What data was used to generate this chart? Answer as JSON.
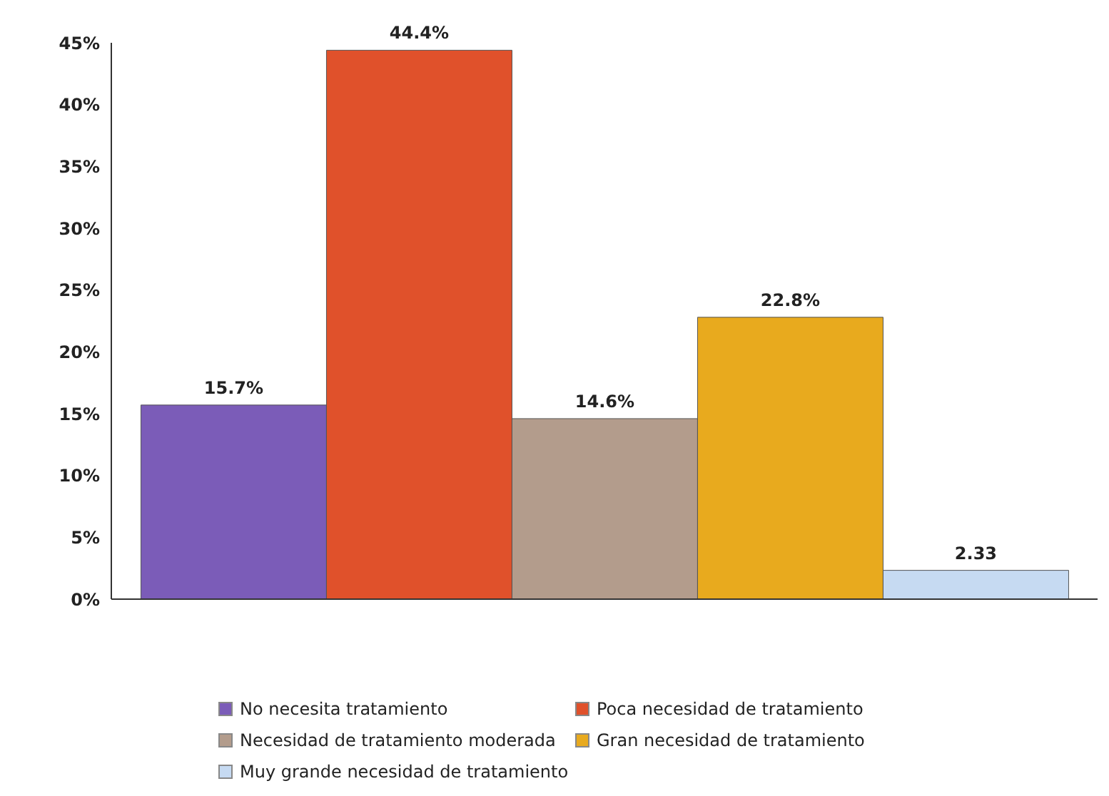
{
  "chart_data": {
    "type": "bar",
    "categories": [
      null
    ],
    "series": [
      {
        "name": "No necesita tratamiento",
        "color": "#7b5cb8",
        "values": [
          15.7
        ],
        "value_labels": [
          "15.7%"
        ]
      },
      {
        "name": "Poca necesidad de tratamiento",
        "color": "#e0512b",
        "values": [
          44.4
        ],
        "value_labels": [
          "44.4%"
        ]
      },
      {
        "name": "Necesidad de tratamiento moderada",
        "color": "#b39c8c",
        "values": [
          14.6
        ],
        "value_labels": [
          "14.6%"
        ]
      },
      {
        "name": "Gran necesidad de tratamiento",
        "color": "#e8aa1e",
        "values": [
          22.8
        ],
        "value_labels": [
          "22.8%"
        ]
      },
      {
        "name": "Muy grande necesidad de tratamiento",
        "color": "#c6daf2",
        "values": [
          2.33
        ],
        "value_labels": [
          "2.33"
        ]
      }
    ],
    "ylim": [
      0,
      45
    ],
    "yticks": [
      {
        "value": 0,
        "label": "0%"
      },
      {
        "value": 5,
        "label": "5%"
      },
      {
        "value": 10,
        "label": "10%"
      },
      {
        "value": 15,
        "label": "15%"
      },
      {
        "value": 20,
        "label": "20%"
      },
      {
        "value": 25,
        "label": "25%"
      },
      {
        "value": 30,
        "label": "30%"
      },
      {
        "value": 35,
        "label": "35%"
      },
      {
        "value": 40,
        "label": "40%"
      },
      {
        "value": 45,
        "label": "45%"
      }
    ],
    "grid": false,
    "legend": "bottom"
  }
}
